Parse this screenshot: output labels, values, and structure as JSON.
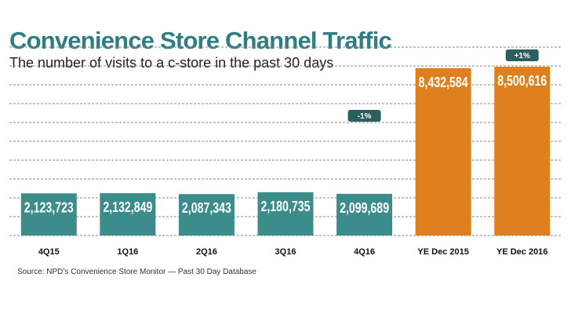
{
  "title": "Convenience Store Channel Traffic",
  "subtitle": "The number of visits to a c-store in the past 30 days",
  "source": "Source: NPD’s Convenience Store Monitor — Past 30 Day Database",
  "colors": {
    "quarterly": "#3d8c8c",
    "annual": "#e07f1e",
    "badge": "#2b5e5e",
    "title": "#2e7d82"
  },
  "chart_data": {
    "type": "bar",
    "categories": [
      "4Q15",
      "1Q16",
      "2Q16",
      "3Q16",
      "4Q16",
      "YE Dec 2015",
      "YE Dec 2016"
    ],
    "values": [
      2123723,
      2132849,
      2087343,
      2180735,
      2099689,
      8432584,
      8500616
    ],
    "value_labels": [
      "2,123,723",
      "2,132,849",
      "2,087,343",
      "2,180,735",
      "2,099,689",
      "8,432,584",
      "8,500,616"
    ],
    "bar_colors": [
      "quarterly",
      "quarterly",
      "quarterly",
      "quarterly",
      "quarterly",
      "annual",
      "annual"
    ],
    "annotations": [
      {
        "category": "4Q16",
        "text": "-1%"
      },
      {
        "category": "YE Dec 2016",
        "text": "+1%"
      }
    ],
    "ylim": [
      0,
      8700000
    ],
    "grid": true,
    "grid_style": "dashed",
    "xlabel": "",
    "ylabel": ""
  }
}
